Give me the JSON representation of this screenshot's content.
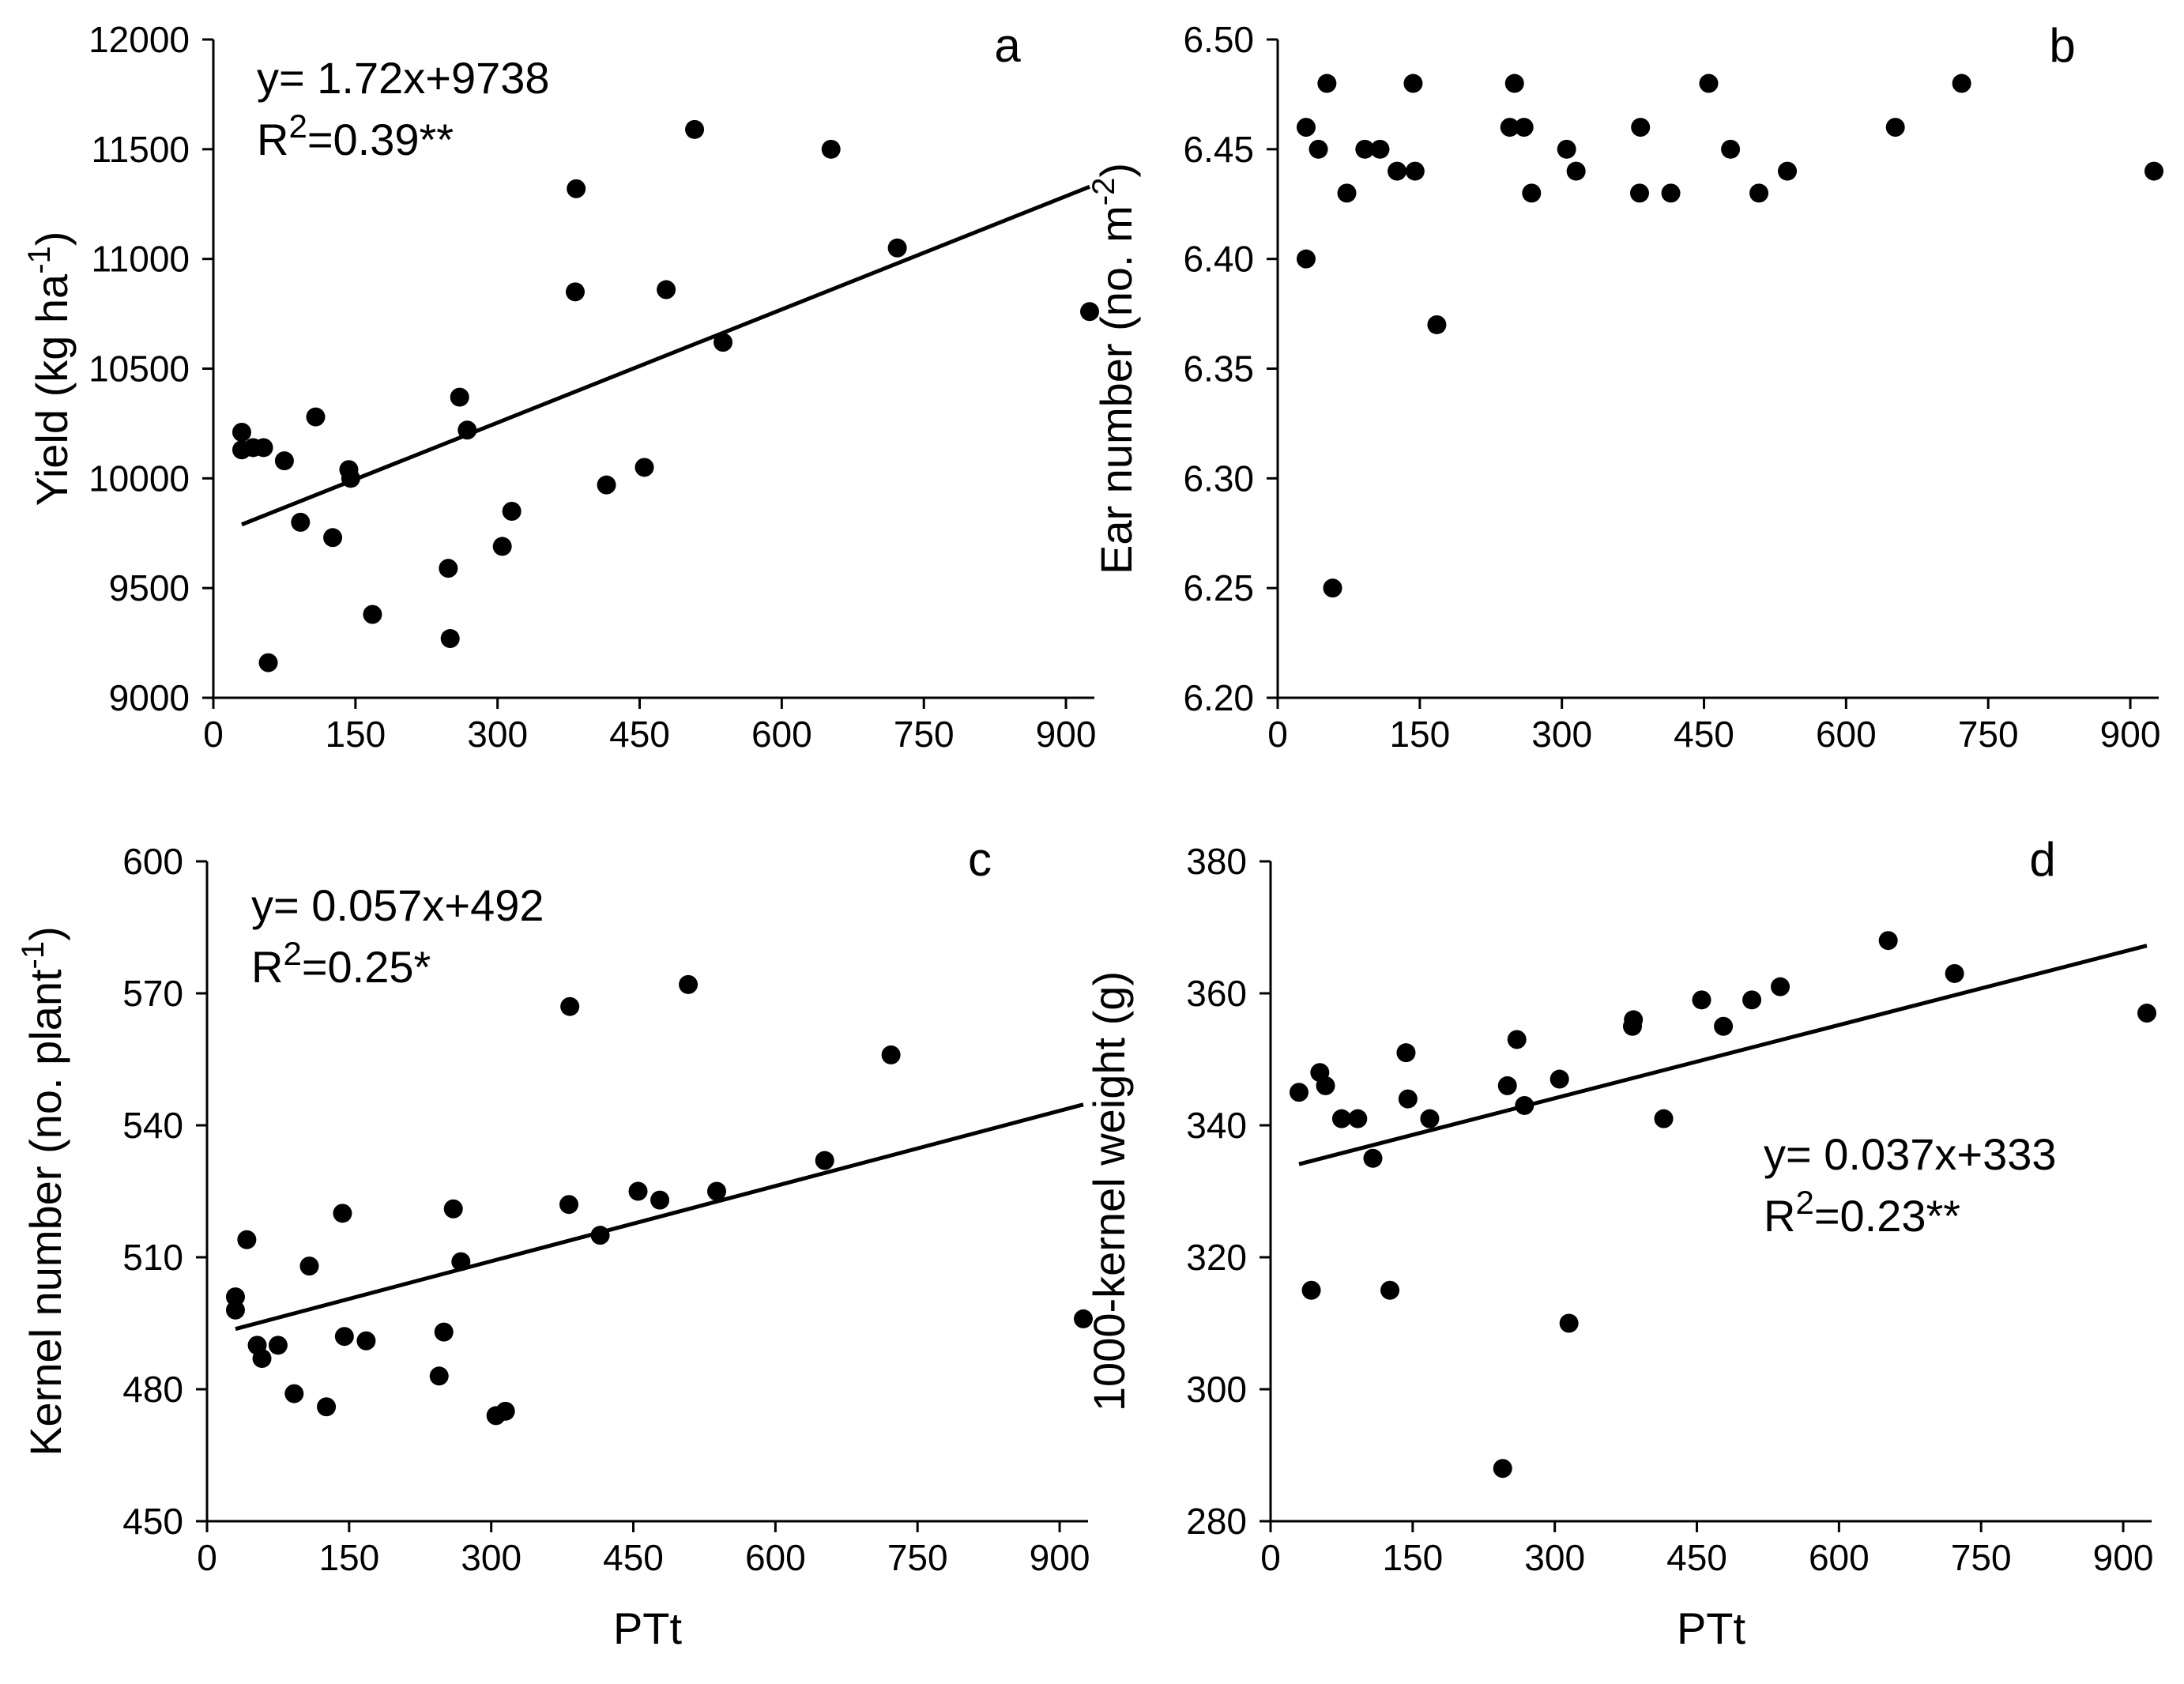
{
  "figure": {
    "shared_xlabel": "PTt"
  },
  "chart_data": [
    {
      "panel": "a",
      "type": "scatter",
      "title": "",
      "letter": "a",
      "xlabel": "",
      "ylabel": "Yield (kg ha",
      "ylabel_sup": "-1",
      "ylabel_tail": ")",
      "xlim": [
        0,
        930
      ],
      "ylim": [
        9000,
        12000
      ],
      "xticks": [
        0,
        150,
        300,
        450,
        600,
        750,
        900
      ],
      "xtick_labels": [
        "0",
        "150",
        "300",
        "450",
        "600",
        "750",
        "900"
      ],
      "yticks": [
        9000,
        9500,
        10000,
        10500,
        11000,
        11500,
        12000
      ],
      "ytick_labels": [
        "9000",
        "9500",
        "10000",
        "10500",
        "11000",
        "11500",
        "12000"
      ],
      "equation": "y= 1.72x+9738",
      "r2_prefix": "R",
      "r2_sup": "2",
      "r2_value": "=0.39**",
      "regression": {
        "slope": 1.72,
        "intercept": 9738,
        "x_range": [
          30,
          925
        ]
      },
      "points": [
        {
          "x": 30,
          "y": 10210
        },
        {
          "x": 30,
          "y": 10130
        },
        {
          "x": 42,
          "y": 10140
        },
        {
          "x": 53,
          "y": 10140
        },
        {
          "x": 58,
          "y": 9160
        },
        {
          "x": 75,
          "y": 10080
        },
        {
          "x": 92,
          "y": 9800
        },
        {
          "x": 108,
          "y": 10280
        },
        {
          "x": 126,
          "y": 9730
        },
        {
          "x": 143,
          "y": 10040
        },
        {
          "x": 145,
          "y": 10000
        },
        {
          "x": 168,
          "y": 9380
        },
        {
          "x": 248,
          "y": 9590
        },
        {
          "x": 250,
          "y": 9270
        },
        {
          "x": 260,
          "y": 10370
        },
        {
          "x": 268,
          "y": 10220
        },
        {
          "x": 305,
          "y": 9690
        },
        {
          "x": 315,
          "y": 9850
        },
        {
          "x": 382,
          "y": 10850
        },
        {
          "x": 383,
          "y": 11320
        },
        {
          "x": 415,
          "y": 9970
        },
        {
          "x": 455,
          "y": 10050
        },
        {
          "x": 478,
          "y": 10860
        },
        {
          "x": 508,
          "y": 11590
        },
        {
          "x": 538,
          "y": 10620
        },
        {
          "x": 652,
          "y": 11500
        },
        {
          "x": 722,
          "y": 11050
        },
        {
          "x": 925,
          "y": 10760
        }
      ]
    },
    {
      "panel": "b",
      "type": "scatter",
      "title": "",
      "letter": "b",
      "xlabel": "",
      "ylabel": "Ear number (no. m",
      "ylabel_sup": "-2",
      "ylabel_tail": ")",
      "xlim": [
        0,
        930
      ],
      "ylim": [
        6.2,
        6.5
      ],
      "xticks": [
        0,
        150,
        300,
        450,
        600,
        750,
        900
      ],
      "xtick_labels": [
        "0",
        "150",
        "300",
        "450",
        "600",
        "750",
        "900"
      ],
      "yticks": [
        6.2,
        6.25,
        6.3,
        6.35,
        6.4,
        6.45,
        6.5
      ],
      "ytick_labels": [
        "6.20",
        "6.25",
        "6.30",
        "6.35",
        "6.40",
        "6.45",
        "6.50"
      ],
      "points": [
        {
          "x": 30,
          "y": 6.46
        },
        {
          "x": 30,
          "y": 6.4
        },
        {
          "x": 43,
          "y": 6.45
        },
        {
          "x": 52,
          "y": 6.48
        },
        {
          "x": 58,
          "y": 6.25
        },
        {
          "x": 73,
          "y": 6.43
        },
        {
          "x": 92,
          "y": 6.45
        },
        {
          "x": 108,
          "y": 6.45
        },
        {
          "x": 126,
          "y": 6.44
        },
        {
          "x": 143,
          "y": 6.48
        },
        {
          "x": 145,
          "y": 6.44
        },
        {
          "x": 168,
          "y": 6.37
        },
        {
          "x": 245,
          "y": 6.46
        },
        {
          "x": 250,
          "y": 6.48
        },
        {
          "x": 260,
          "y": 6.46
        },
        {
          "x": 268,
          "y": 6.43
        },
        {
          "x": 305,
          "y": 6.45
        },
        {
          "x": 315,
          "y": 6.44
        },
        {
          "x": 382,
          "y": 6.43
        },
        {
          "x": 383,
          "y": 6.46
        },
        {
          "x": 415,
          "y": 6.43
        },
        {
          "x": 455,
          "y": 6.48
        },
        {
          "x": 478,
          "y": 6.45
        },
        {
          "x": 508,
          "y": 6.43
        },
        {
          "x": 538,
          "y": 6.44
        },
        {
          "x": 652,
          "y": 6.46
        },
        {
          "x": 722,
          "y": 6.48
        },
        {
          "x": 925,
          "y": 6.44
        }
      ]
    },
    {
      "panel": "c",
      "type": "scatter",
      "title": "",
      "letter": "c",
      "xlabel": "PTt",
      "ylabel": "Kernel number (no. plant",
      "ylabel_sup": "-1",
      "ylabel_tail": ")",
      "xlim": [
        0,
        930
      ],
      "ylim": [
        450,
        600
      ],
      "xticks": [
        0,
        150,
        300,
        450,
        600,
        750,
        900
      ],
      "xtick_labels": [
        "0",
        "150",
        "300",
        "450",
        "600",
        "750",
        "900"
      ],
      "yticks": [
        450,
        480,
        510,
        540,
        570,
        600
      ],
      "ytick_labels": [
        "450",
        "480",
        "510",
        "540",
        "570",
        "600"
      ],
      "equation": "y= 0.057x+492",
      "r2_prefix": "R",
      "r2_sup": "2",
      "r2_value": "=0.25*",
      "regression": {
        "slope": 0.057,
        "intercept": 492,
        "x_range": [
          30,
          925
        ]
      },
      "points": [
        {
          "x": 30,
          "y": 501
        },
        {
          "x": 30,
          "y": 498
        },
        {
          "x": 42,
          "y": 514
        },
        {
          "x": 53,
          "y": 490
        },
        {
          "x": 58,
          "y": 487
        },
        {
          "x": 75,
          "y": 490
        },
        {
          "x": 92,
          "y": 479
        },
        {
          "x": 108,
          "y": 508
        },
        {
          "x": 126,
          "y": 476
        },
        {
          "x": 143,
          "y": 520
        },
        {
          "x": 145,
          "y": 492
        },
        {
          "x": 168,
          "y": 491
        },
        {
          "x": 245,
          "y": 483
        },
        {
          "x": 250,
          "y": 493
        },
        {
          "x": 260,
          "y": 521
        },
        {
          "x": 268,
          "y": 509
        },
        {
          "x": 305,
          "y": 474
        },
        {
          "x": 315,
          "y": 475
        },
        {
          "x": 382,
          "y": 522
        },
        {
          "x": 383,
          "y": 567
        },
        {
          "x": 415,
          "y": 515
        },
        {
          "x": 455,
          "y": 525
        },
        {
          "x": 478,
          "y": 523
        },
        {
          "x": 508,
          "y": 572
        },
        {
          "x": 538,
          "y": 525
        },
        {
          "x": 652,
          "y": 532
        },
        {
          "x": 722,
          "y": 556
        },
        {
          "x": 925,
          "y": 496
        }
      ]
    },
    {
      "panel": "d",
      "type": "scatter",
      "title": "",
      "letter": "d",
      "xlabel": "PTt",
      "ylabel": "1000-kernel weight (g)",
      "ylabel_sup": "",
      "ylabel_tail": "",
      "xlim": [
        0,
        930
      ],
      "ylim": [
        280,
        380
      ],
      "xticks": [
        0,
        150,
        300,
        450,
        600,
        750,
        900
      ],
      "xtick_labels": [
        "0",
        "150",
        "300",
        "450",
        "600",
        "750",
        "900"
      ],
      "yticks": [
        280,
        300,
        320,
        340,
        360,
        380
      ],
      "ytick_labels": [
        "280",
        "300",
        "320",
        "340",
        "360",
        "380"
      ],
      "equation": "y= 0.037x+333",
      "r2_prefix": "R",
      "r2_sup": "2",
      "r2_value": "=0.23**",
      "regression": {
        "slope": 0.037,
        "intercept": 333,
        "x_range": [
          30,
          925
        ]
      },
      "points": [
        {
          "x": 30,
          "y": 345
        },
        {
          "x": 43,
          "y": 315
        },
        {
          "x": 52,
          "y": 348
        },
        {
          "x": 58,
          "y": 346
        },
        {
          "x": 75,
          "y": 341
        },
        {
          "x": 92,
          "y": 341
        },
        {
          "x": 108,
          "y": 335
        },
        {
          "x": 126,
          "y": 315
        },
        {
          "x": 143,
          "y": 351
        },
        {
          "x": 145,
          "y": 344
        },
        {
          "x": 168,
          "y": 341
        },
        {
          "x": 245,
          "y": 288
        },
        {
          "x": 250,
          "y": 346
        },
        {
          "x": 260,
          "y": 353
        },
        {
          "x": 268,
          "y": 343
        },
        {
          "x": 305,
          "y": 347
        },
        {
          "x": 315,
          "y": 310
        },
        {
          "x": 382,
          "y": 355
        },
        {
          "x": 383,
          "y": 356
        },
        {
          "x": 415,
          "y": 341
        },
        {
          "x": 455,
          "y": 359
        },
        {
          "x": 478,
          "y": 355
        },
        {
          "x": 508,
          "y": 359
        },
        {
          "x": 538,
          "y": 361
        },
        {
          "x": 652,
          "y": 368
        },
        {
          "x": 722,
          "y": 363
        },
        {
          "x": 925,
          "y": 357
        }
      ]
    }
  ]
}
